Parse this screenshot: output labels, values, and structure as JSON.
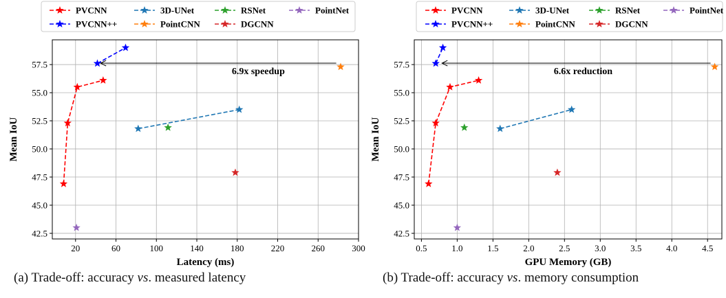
{
  "chart_data": [
    {
      "type": "scatter",
      "xlabel": "Latency (ms)",
      "ylabel": "Mean IoU",
      "xticks": [
        20,
        60,
        100,
        140,
        180,
        220,
        260,
        300
      ],
      "xtick_labels": [
        "20",
        "60",
        "100",
        "140",
        "180",
        "220",
        "260",
        "300"
      ],
      "yticks": [
        42.5,
        45.0,
        47.5,
        50.0,
        52.5,
        55.0,
        57.5
      ],
      "ytick_labels": [
        "42.5",
        "45.0",
        "47.5",
        "50.0",
        "52.5",
        "55.0",
        "57.5"
      ],
      "xlim": [
        -3,
        300
      ],
      "ylim": [
        42.0,
        59.7
      ],
      "grid": true,
      "legend_position": "top",
      "annotation": {
        "text": "6.9x speedup",
        "from": [
          282,
          57.3
        ],
        "to": [
          40,
          57.5
        ]
      },
      "series": [
        {
          "name": "PVCNN",
          "color": "#ff0000",
          "values": [
            [
              8.2,
              46.9
            ],
            [
              12.2,
              52.3
            ],
            [
              21.7,
              55.5
            ],
            [
              47.3,
              56.1
            ]
          ]
        },
        {
          "name": "PVCNN++",
          "color": "#0000ff",
          "values": [
            [
              41.6,
              57.6
            ],
            [
              69.5,
              59.0
            ]
          ]
        },
        {
          "name": "3D-UNet",
          "color": "#1f77b4",
          "values": [
            [
              82.0,
              51.8
            ],
            [
              182.0,
              53.5
            ]
          ]
        },
        {
          "name": "PointCNN",
          "color": "#ff7f0e",
          "values": [
            [
              282.3,
              57.3
            ]
          ]
        },
        {
          "name": "RSNet",
          "color": "#2ca02c",
          "values": [
            [
              111.5,
              51.9
            ]
          ]
        },
        {
          "name": "DGCNN",
          "color": "#d62728",
          "values": [
            [
              178.1,
              47.9
            ]
          ]
        },
        {
          "name": "PointNet",
          "color": "#9467bd",
          "values": [
            [
              20.9,
              43.0
            ]
          ]
        }
      ]
    },
    {
      "type": "scatter",
      "xlabel": "GPU Memory (GB)",
      "ylabel": "Mean IoU",
      "xticks": [
        0.5,
        1.0,
        1.5,
        2.0,
        2.5,
        3.0,
        3.5,
        4.0,
        4.5
      ],
      "xtick_labels": [
        "0.5",
        "1.0",
        "1.5",
        "2.0",
        "2.5",
        "3.0",
        "3.5",
        "4.0",
        "4.5"
      ],
      "yticks": [
        42.5,
        45.0,
        47.5,
        50.0,
        52.5,
        55.0,
        57.5
      ],
      "ytick_labels": [
        "42.5",
        "45.0",
        "47.5",
        "50.0",
        "52.5",
        "55.0",
        "57.5"
      ],
      "xlim": [
        0.4,
        4.7
      ],
      "ylim": [
        42.0,
        59.7
      ],
      "grid": true,
      "legend_position": "top",
      "annotation": {
        "text": "6.6x reduction",
        "from": [
          4.6,
          57.3
        ],
        "to": [
          0.72,
          57.5
        ]
      },
      "series": [
        {
          "name": "PVCNN",
          "color": "#ff0000",
          "values": [
            [
              0.6,
              46.9
            ],
            [
              0.7,
              52.3
            ],
            [
              0.9,
              55.5
            ],
            [
              1.3,
              56.1
            ]
          ]
        },
        {
          "name": "PVCNN++",
          "color": "#0000ff",
          "values": [
            [
              0.7,
              57.6
            ],
            [
              0.8,
              59.0
            ]
          ]
        },
        {
          "name": "3D-UNet",
          "color": "#1f77b4",
          "values": [
            [
              1.6,
              51.8
            ],
            [
              2.6,
              53.5
            ]
          ]
        },
        {
          "name": "PointCNN",
          "color": "#ff7f0e",
          "values": [
            [
              4.6,
              57.3
            ]
          ]
        },
        {
          "name": "RSNet",
          "color": "#2ca02c",
          "values": [
            [
              1.1,
              51.9
            ]
          ]
        },
        {
          "name": "DGCNN",
          "color": "#d62728",
          "values": [
            [
              2.4,
              47.9
            ]
          ]
        },
        {
          "name": "PointNet",
          "color": "#9467bd",
          "values": [
            [
              1.0,
              43.0
            ]
          ]
        }
      ]
    }
  ],
  "captions": {
    "a": {
      "prefix": "(a) Trade-off: accuracy ",
      "em": "vs",
      "suffix": ". measured latency"
    },
    "b": {
      "prefix": "(b) Trade-off: accuracy ",
      "em": "vs",
      "suffix": ". memory consumption"
    }
  }
}
